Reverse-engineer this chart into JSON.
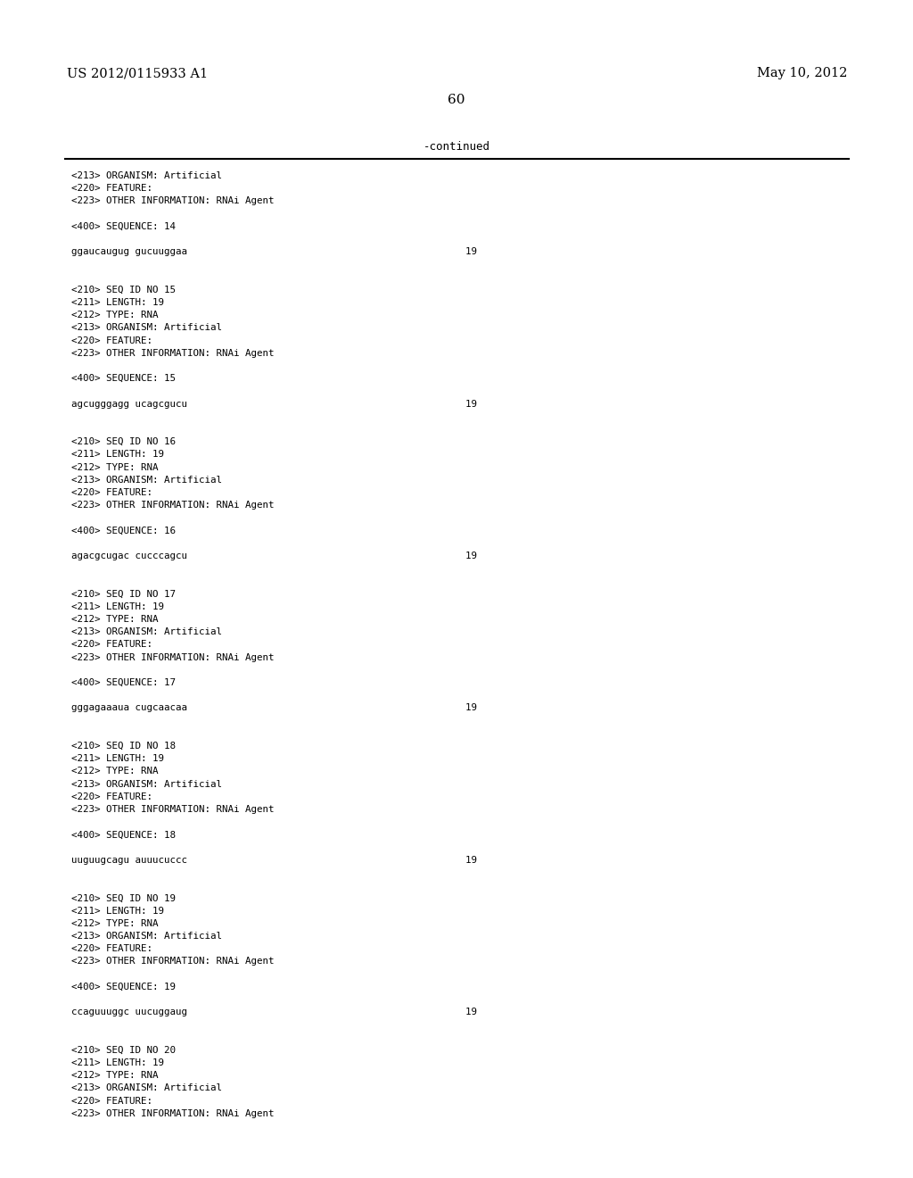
{
  "header_left": "US 2012/0115933 A1",
  "header_right": "May 10, 2012",
  "page_number": "60",
  "continued_text": "-continued",
  "background_color": "#ffffff",
  "text_color": "#000000",
  "font_size_header": 10.5,
  "font_size_body": 8.0,
  "lines": [
    "<213> ORGANISM: Artificial",
    "<220> FEATURE:",
    "<223> OTHER INFORMATION: RNAi Agent",
    "",
    "<400> SEQUENCE: 14",
    "",
    "ggaucaugug gucuuggaa                                                19",
    "",
    "",
    "<210> SEQ ID NO 15",
    "<211> LENGTH: 19",
    "<212> TYPE: RNA",
    "<213> ORGANISM: Artificial",
    "<220> FEATURE:",
    "<223> OTHER INFORMATION: RNAi Agent",
    "",
    "<400> SEQUENCE: 15",
    "",
    "agcugggagg ucagcgucu                                                19",
    "",
    "",
    "<210> SEQ ID NO 16",
    "<211> LENGTH: 19",
    "<212> TYPE: RNA",
    "<213> ORGANISM: Artificial",
    "<220> FEATURE:",
    "<223> OTHER INFORMATION: RNAi Agent",
    "",
    "<400> SEQUENCE: 16",
    "",
    "agacgcugac cucccagcu                                                19",
    "",
    "",
    "<210> SEQ ID NO 17",
    "<211> LENGTH: 19",
    "<212> TYPE: RNA",
    "<213> ORGANISM: Artificial",
    "<220> FEATURE:",
    "<223> OTHER INFORMATION: RNAi Agent",
    "",
    "<400> SEQUENCE: 17",
    "",
    "gggagaaaua cugcaacaa                                                19",
    "",
    "",
    "<210> SEQ ID NO 18",
    "<211> LENGTH: 19",
    "<212> TYPE: RNA",
    "<213> ORGANISM: Artificial",
    "<220> FEATURE:",
    "<223> OTHER INFORMATION: RNAi Agent",
    "",
    "<400> SEQUENCE: 18",
    "",
    "uuguugcagu auuucuccc                                                19",
    "",
    "",
    "<210> SEQ ID NO 19",
    "<211> LENGTH: 19",
    "<212> TYPE: RNA",
    "<213> ORGANISM: Artificial",
    "<220> FEATURE:",
    "<223> OTHER INFORMATION: RNAi Agent",
    "",
    "<400> SEQUENCE: 19",
    "",
    "ccaguuuggc uucuggaug                                                19",
    "",
    "",
    "<210> SEQ ID NO 20",
    "<211> LENGTH: 19",
    "<212> TYPE: RNA",
    "<213> ORGANISM: Artificial",
    "<220> FEATURE:",
    "<223> OTHER INFORMATION: RNAi Agent"
  ]
}
